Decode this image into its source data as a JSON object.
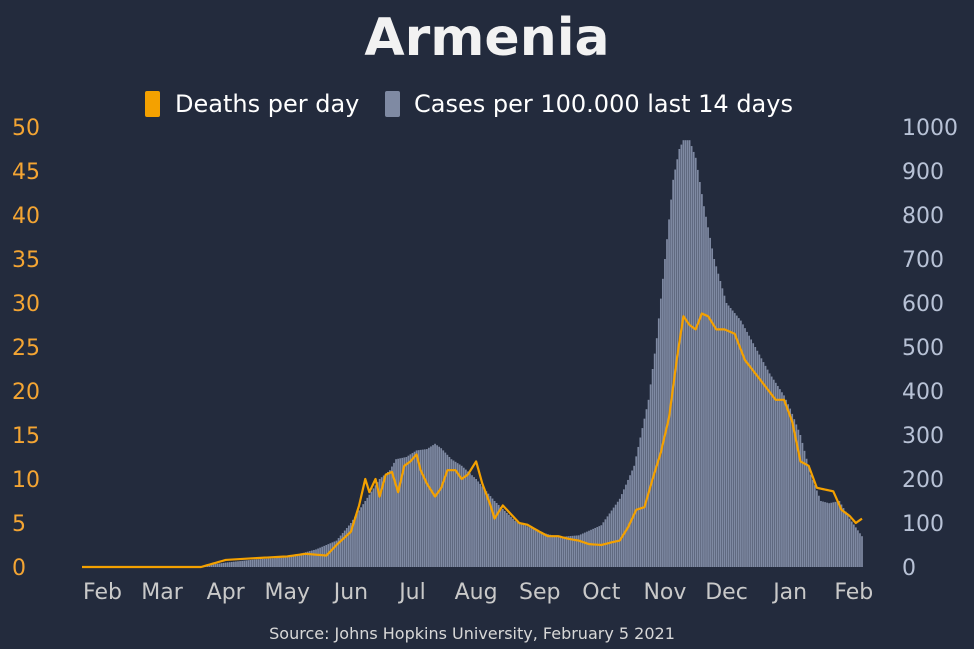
{
  "chart_data": {
    "type": "bar+line",
    "title": "Armenia",
    "source": "Source: Johns Hopkins University, February 5 2021",
    "legend": [
      {
        "label": "Deaths per day",
        "color": "#f4a100"
      },
      {
        "label": "Cases per 100.000 last 14 days",
        "color": "#7f8aa3"
      }
    ],
    "legend_placement": "top-center",
    "y_left": {
      "ticks": [
        "0",
        "5",
        "10",
        "15",
        "20",
        "25",
        "30",
        "35",
        "40",
        "45",
        "50"
      ],
      "range": [
        0,
        50
      ],
      "color": "#f4a533"
    },
    "y_right": {
      "ticks": [
        "0",
        "100",
        "200",
        "300",
        "400",
        "500",
        "600",
        "700",
        "800",
        "900",
        "1000"
      ],
      "range": [
        0,
        1000
      ],
      "color": "#b8c2d6"
    },
    "x_axis": {
      "start": "2020-01-22",
      "end": "2021-02-05",
      "ticks": [
        {
          "date": "2020-02-01",
          "label": "Feb"
        },
        {
          "date": "2020-03-01",
          "label": "Mar"
        },
        {
          "date": "2020-04-01",
          "label": "Apr"
        },
        {
          "date": "2020-05-01",
          "label": "May"
        },
        {
          "date": "2020-06-01",
          "label": "Jun"
        },
        {
          "date": "2020-07-01",
          "label": "Jul"
        },
        {
          "date": "2020-08-01",
          "label": "Aug"
        },
        {
          "date": "2020-09-01",
          "label": "Sep"
        },
        {
          "date": "2020-10-01",
          "label": "Oct"
        },
        {
          "date": "2020-11-01",
          "label": "Nov"
        },
        {
          "date": "2020-12-01",
          "label": "Dec"
        },
        {
          "date": "2021-01-01",
          "label": "Jan"
        },
        {
          "date": "2021-02-01",
          "label": "Feb"
        }
      ]
    },
    "grid": false,
    "series": [
      {
        "name": "Cases per 100.000 last 14 days",
        "type": "bar",
        "axis": "right",
        "points": [
          [
            "2020-01-22",
            0
          ],
          [
            "2020-03-01",
            0
          ],
          [
            "2020-03-20",
            2
          ],
          [
            "2020-04-01",
            10
          ],
          [
            "2020-04-15",
            17
          ],
          [
            "2020-05-01",
            22
          ],
          [
            "2020-05-15",
            40
          ],
          [
            "2020-05-25",
            60
          ],
          [
            "2020-06-01",
            100
          ],
          [
            "2020-06-08",
            150
          ],
          [
            "2020-06-15",
            200
          ],
          [
            "2020-06-20",
            220
          ],
          [
            "2020-06-23",
            245
          ],
          [
            "2020-06-28",
            250
          ],
          [
            "2020-07-03",
            265
          ],
          [
            "2020-07-08",
            268
          ],
          [
            "2020-07-12",
            280
          ],
          [
            "2020-07-15",
            270
          ],
          [
            "2020-07-20",
            245
          ],
          [
            "2020-07-25",
            230
          ],
          [
            "2020-08-01",
            200
          ],
          [
            "2020-08-10",
            150
          ],
          [
            "2020-08-20",
            105
          ],
          [
            "2020-09-01",
            80
          ],
          [
            "2020-09-10",
            68
          ],
          [
            "2020-09-20",
            72
          ],
          [
            "2020-10-01",
            95
          ],
          [
            "2020-10-10",
            155
          ],
          [
            "2020-10-17",
            230
          ],
          [
            "2020-10-24",
            380
          ],
          [
            "2020-10-28",
            520
          ],
          [
            "2020-11-01",
            700
          ],
          [
            "2020-11-05",
            880
          ],
          [
            "2020-11-08",
            950
          ],
          [
            "2020-11-10",
            970
          ],
          [
            "2020-11-13",
            970
          ],
          [
            "2020-11-16",
            930
          ],
          [
            "2020-11-20",
            820
          ],
          [
            "2020-11-25",
            700
          ],
          [
            "2020-12-01",
            600
          ],
          [
            "2020-12-08",
            560
          ],
          [
            "2020-12-15",
            500
          ],
          [
            "2020-12-22",
            440
          ],
          [
            "2020-12-29",
            390
          ],
          [
            "2021-01-01",
            360
          ],
          [
            "2021-01-06",
            300
          ],
          [
            "2021-01-11",
            210
          ],
          [
            "2021-01-16",
            150
          ],
          [
            "2021-01-20",
            145
          ],
          [
            "2021-01-25",
            150
          ],
          [
            "2021-01-30",
            110
          ],
          [
            "2021-02-05",
            70
          ]
        ]
      },
      {
        "name": "Deaths per day",
        "type": "line",
        "axis": "left",
        "points": [
          [
            "2020-01-22",
            0
          ],
          [
            "2020-03-20",
            0
          ],
          [
            "2020-04-01",
            0.8
          ],
          [
            "2020-04-15",
            1.0
          ],
          [
            "2020-05-01",
            1.2
          ],
          [
            "2020-05-10",
            1.5
          ],
          [
            "2020-05-20",
            1.3
          ],
          [
            "2020-05-25",
            2.5
          ],
          [
            "2020-06-01",
            4
          ],
          [
            "2020-06-05",
            7
          ],
          [
            "2020-06-08",
            10
          ],
          [
            "2020-06-10",
            8.5
          ],
          [
            "2020-06-13",
            10
          ],
          [
            "2020-06-15",
            8
          ],
          [
            "2020-06-18",
            10.5
          ],
          [
            "2020-06-21",
            10.8
          ],
          [
            "2020-06-24",
            8.5
          ],
          [
            "2020-06-27",
            11.5
          ],
          [
            "2020-06-30",
            12
          ],
          [
            "2020-07-03",
            12.8
          ],
          [
            "2020-07-05",
            11
          ],
          [
            "2020-07-08",
            9.5
          ],
          [
            "2020-07-12",
            8
          ],
          [
            "2020-07-15",
            9
          ],
          [
            "2020-07-18",
            11
          ],
          [
            "2020-07-22",
            11
          ],
          [
            "2020-07-25",
            10
          ],
          [
            "2020-07-28",
            10.5
          ],
          [
            "2020-08-01",
            12
          ],
          [
            "2020-08-04",
            9.5
          ],
          [
            "2020-08-08",
            7
          ],
          [
            "2020-08-10",
            5.5
          ],
          [
            "2020-08-14",
            7
          ],
          [
            "2020-08-18",
            6
          ],
          [
            "2020-08-22",
            5
          ],
          [
            "2020-08-26",
            4.8
          ],
          [
            "2020-09-01",
            4
          ],
          [
            "2020-09-05",
            3.5
          ],
          [
            "2020-09-10",
            3.5
          ],
          [
            "2020-09-15",
            3.2
          ],
          [
            "2020-09-20",
            3
          ],
          [
            "2020-09-25",
            2.6
          ],
          [
            "2020-10-01",
            2.5
          ],
          [
            "2020-10-06",
            2.8
          ],
          [
            "2020-10-10",
            3
          ],
          [
            "2020-10-14",
            4.5
          ],
          [
            "2020-10-18",
            6.5
          ],
          [
            "2020-10-22",
            6.8
          ],
          [
            "2020-10-26",
            10
          ],
          [
            "2020-10-30",
            13
          ],
          [
            "2020-11-03",
            17
          ],
          [
            "2020-11-07",
            24
          ],
          [
            "2020-11-10",
            28.5
          ],
          [
            "2020-11-13",
            27.5
          ],
          [
            "2020-11-16",
            27
          ],
          [
            "2020-11-19",
            28.8
          ],
          [
            "2020-11-22",
            28.5
          ],
          [
            "2020-11-26",
            27
          ],
          [
            "2020-11-30",
            27
          ],
          [
            "2020-12-05",
            26.5
          ],
          [
            "2020-12-10",
            23.5
          ],
          [
            "2020-12-15",
            22
          ],
          [
            "2020-12-20",
            20.5
          ],
          [
            "2020-12-25",
            19
          ],
          [
            "2020-12-29",
            19
          ],
          [
            "2021-01-02",
            16.5
          ],
          [
            "2021-01-06",
            12
          ],
          [
            "2021-01-10",
            11.5
          ],
          [
            "2021-01-14",
            9
          ],
          [
            "2021-01-18",
            8.8
          ],
          [
            "2021-01-22",
            8.6
          ],
          [
            "2021-01-26",
            6.5
          ],
          [
            "2021-01-30",
            5.8
          ],
          [
            "2021-02-02",
            5
          ],
          [
            "2021-02-05",
            5.5
          ]
        ]
      }
    ]
  }
}
